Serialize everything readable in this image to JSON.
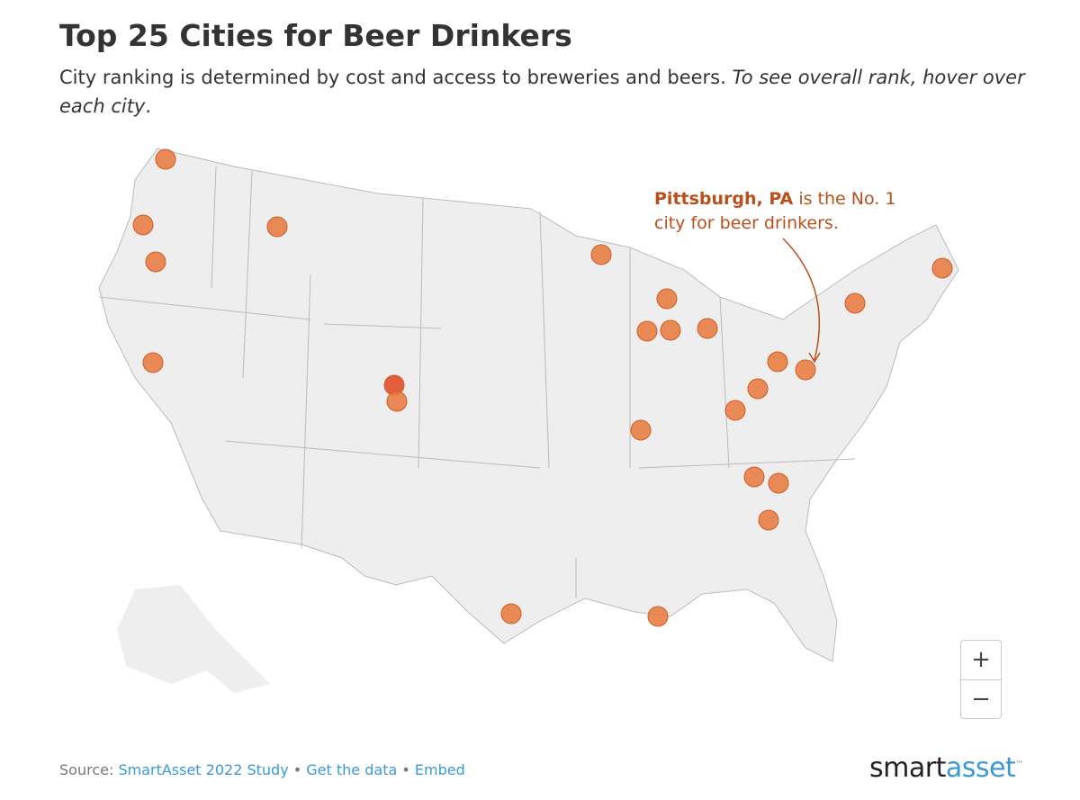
{
  "header": {
    "title": "Top 25 Cities for Beer Drinkers",
    "subtitle": "City ranking is determined by cost and access to breweries and beers.",
    "subtitle_italic": "To see overall rank, hover over each city",
    "subtitle_end": "."
  },
  "annotation": {
    "bold": "Pittsburgh, PA",
    "text": "is the No. 1 city for beer drinkers."
  },
  "zoom": {
    "in": "+",
    "out": "−"
  },
  "footer": {
    "source_label": "Source:",
    "links": [
      "SmartAsset 2022 Study",
      "Get the data",
      "Embed"
    ],
    "separator": "•"
  },
  "logo": {
    "part1": "smart",
    "part2": "asset",
    "mark": "™"
  }
}
